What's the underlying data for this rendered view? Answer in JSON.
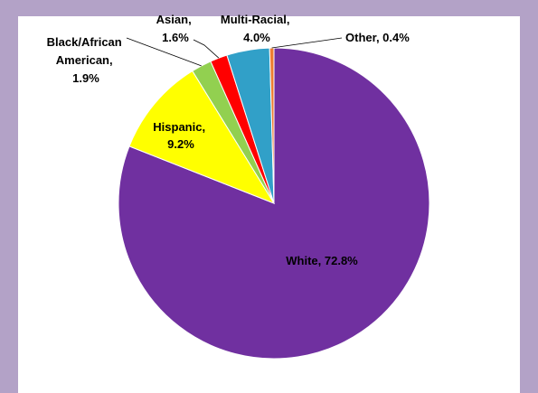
{
  "chart_data": {
    "type": "pie",
    "title": "",
    "start_angle_deg": 0,
    "direction": "clockwise",
    "legend": "none",
    "slices": [
      {
        "category": "White",
        "value": 72.8,
        "color": "#7030a0",
        "line1": "White, 72.8%",
        "line2": "",
        "line3": ""
      },
      {
        "category": "Hispanic",
        "value": 9.2,
        "color": "#ffff00",
        "line1": "Hispanic,",
        "line2": "9.2%",
        "line3": ""
      },
      {
        "category": "Black/African American",
        "value": 1.9,
        "color": "#92d050",
        "line1": "Black/African",
        "line2": "American,",
        "line3": "1.9%"
      },
      {
        "category": "Asian",
        "value": 1.6,
        "color": "#ff0000",
        "line1": "Asian,",
        "line2": "1.6%",
        "line3": ""
      },
      {
        "category": "Multi-Racial",
        "value": 4.0,
        "color": "#31a0c8",
        "line1": "Multi-Racial,",
        "line2": "4.0%",
        "line3": ""
      },
      {
        "category": "Other",
        "value": 0.4,
        "color": "#ed7d31",
        "line1": "Other, 0.4%",
        "line2": "",
        "line3": ""
      }
    ]
  }
}
